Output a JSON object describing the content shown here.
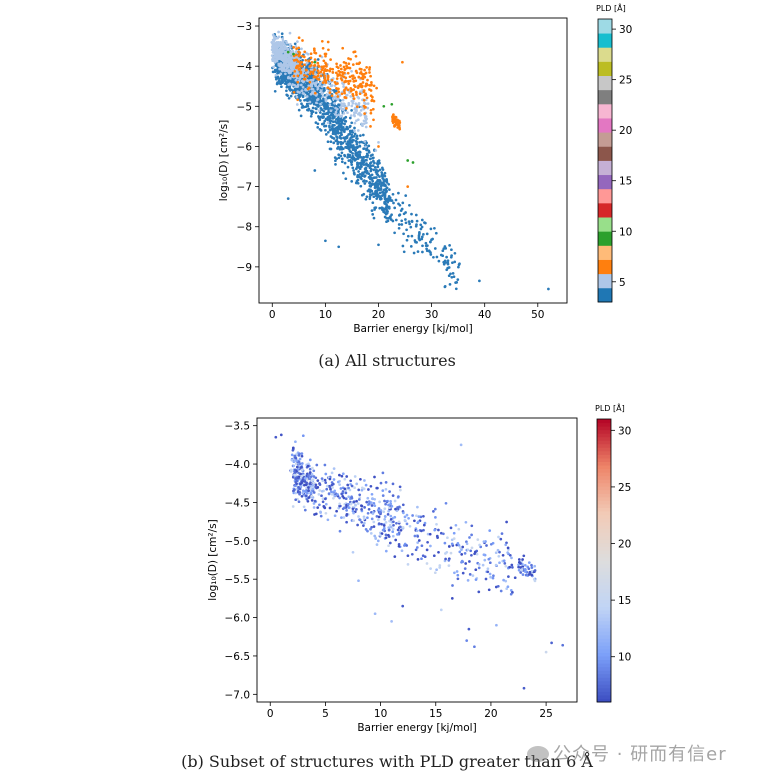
{
  "chart_data": [
    {
      "type": "scatter",
      "title": "",
      "caption": "(a) All structures",
      "xlabel": "Barrier energy [kj/mol]",
      "ylabel": "log₁₀(D) [cm²/s]",
      "xlim": [
        -2.5,
        55.5
      ],
      "ylim": [
        -9.9,
        -2.8
      ],
      "xticks": [
        0,
        10,
        20,
        30,
        40,
        50
      ],
      "yticks": [
        -3,
        -4,
        -5,
        -6,
        -7,
        -8,
        -9
      ],
      "grid": false,
      "colorbar": {
        "label": "PLD [Å]",
        "type": "discrete",
        "cmap": "tab20",
        "range": [
          3,
          31
        ],
        "ticks": [
          5,
          10,
          15,
          20,
          25,
          30
        ],
        "colors": [
          "#1f77b4",
          "#aec7e8",
          "#ff7f0e",
          "#ffbb78",
          "#2ca02c",
          "#98df8a",
          "#d62728",
          "#ff9896",
          "#9467bd",
          "#c5b0d5",
          "#8c564b",
          "#c49c94",
          "#e377c2",
          "#f7b6d2",
          "#7f7f7f",
          "#c7c7c7",
          "#bcbd22",
          "#dbdb8d",
          "#17becf",
          "#9edae5"
        ]
      },
      "series": [
        {
          "pld_group": "<5",
          "color": "#2a7ab8",
          "clusters": [
            {
              "x": [
                0.5,
                8
              ],
              "y_at": [
                -3.8,
                -4.6
              ],
              "spread": 0.28,
              "n": 900
            },
            {
              "x": [
                8,
                22
              ],
              "y_at": [
                -4.6,
                -7.4
              ],
              "spread": 0.35,
              "n": 800
            },
            {
              "x": [
                22,
                35
              ],
              "y_at": [
                -7.4,
                -9.2
              ],
              "spread": 0.3,
              "n": 130
            }
          ],
          "points": [
            [
              52,
              -9.55
            ],
            [
              39,
              -9.35
            ],
            [
              32.5,
              -9.5
            ],
            [
              10,
              -8.35
            ],
            [
              12.5,
              -8.5
            ],
            [
              8,
              -6.6
            ],
            [
              3,
              -7.3
            ],
            [
              20,
              -8.45
            ]
          ]
        },
        {
          "pld_group": "5-6",
          "color": "#aec7e8",
          "clusters": [
            {
              "x": [
                0,
                5
              ],
              "y_at": [
                -3.6,
                -4.0
              ],
              "spread": 0.18,
              "n": 350
            },
            {
              "x": [
                3,
                18
              ],
              "y_at": [
                -4.0,
                -5.2
              ],
              "spread": 0.3,
              "n": 300
            }
          ],
          "points": [
            [
              1.2,
              -3.15
            ],
            [
              1.0,
              -3.3
            ],
            [
              20,
              -5.9
            ],
            [
              19.5,
              -6.1
            ]
          ]
        },
        {
          "pld_group": "6-7",
          "color": "#ff7f0e",
          "clusters": [
            {
              "x": [
                4,
                19
              ],
              "y_at": [
                -3.9,
                -4.6
              ],
              "spread": 0.3,
              "n": 280
            },
            {
              "x": [
                22.5,
                24
              ],
              "y_at": [
                -5.3,
                -5.45
              ],
              "spread": 0.07,
              "n": 60
            }
          ],
          "points": [
            [
              24.5,
              -3.9
            ],
            [
              25.5,
              -7.0
            ],
            [
              18.5,
              -5.5
            ],
            [
              20,
              -6.0
            ]
          ]
        },
        {
          "pld_group": "10-11",
          "color": "#2ca02c",
          "points": [
            [
              3,
              -3.65
            ],
            [
              4,
              -3.7
            ],
            [
              21,
              -5.0
            ],
            [
              22.5,
              -4.95
            ],
            [
              25.5,
              -6.35
            ],
            [
              26.5,
              -6.4
            ],
            [
              8,
              -3.9
            ]
          ]
        }
      ]
    },
    {
      "type": "scatter",
      "title": "",
      "caption": "(b) Subset of structures with PLD greater than 6 Å",
      "xlabel": "Barrier energy [kj/mol]",
      "ylabel": "log₁₀(D) [cm²/s]",
      "xlim": [
        -1.2,
        27.8
      ],
      "ylim": [
        -7.1,
        -3.4
      ],
      "xticks": [
        0,
        5,
        10,
        15,
        20,
        25
      ],
      "yticks": [
        -3.5,
        -4.0,
        -4.5,
        -5.0,
        -5.5,
        -6.0,
        -6.5,
        -7.0
      ],
      "grid": false,
      "colorbar": {
        "label": "PLD [Å]",
        "type": "continuous",
        "cmap": "coolwarm",
        "range": [
          6,
          31
        ],
        "ticks": [
          10,
          15,
          20,
          25,
          30
        ]
      },
      "series": [
        {
          "pld_range": [
            6,
            16
          ],
          "clusters": [
            {
              "x": [
                2,
                4
              ],
              "y_at": [
                -4.0,
                -4.3
              ],
              "spread": 0.12,
              "n": 160
            },
            {
              "x": [
                2,
                12
              ],
              "y_at": [
                -4.2,
                -4.75
              ],
              "spread": 0.17,
              "n": 380
            },
            {
              "x": [
                10,
                22
              ],
              "y_at": [
                -4.75,
                -5.35
              ],
              "spread": 0.22,
              "n": 240
            },
            {
              "x": [
                22.5,
                24
              ],
              "y_at": [
                -5.3,
                -5.45
              ],
              "spread": 0.06,
              "n": 50
            }
          ],
          "points": [
            [
              1,
              -3.62
            ],
            [
              0.5,
              -3.65
            ],
            [
              3,
              -3.63
            ],
            [
              17.3,
              -3.75
            ],
            [
              25.5,
              -6.33
            ],
            [
              26.5,
              -6.36
            ],
            [
              25,
              -6.45
            ],
            [
              23,
              -6.92
            ],
            [
              20.5,
              -6.1
            ],
            [
              18.5,
              -6.38
            ],
            [
              18,
              -6.15
            ],
            [
              11,
              -6.05
            ],
            [
              9.5,
              -5.95
            ],
            [
              12,
              -5.85
            ],
            [
              15.5,
              -5.9
            ],
            [
              16.5,
              -5.75
            ],
            [
              17.8,
              -6.3
            ],
            [
              8,
              -5.52
            ],
            [
              16,
              -5.15
            ],
            [
              7.5,
              -5.15
            ]
          ]
        }
      ]
    }
  ],
  "watermark": {
    "text": "公众号 · 研而有信er"
  }
}
